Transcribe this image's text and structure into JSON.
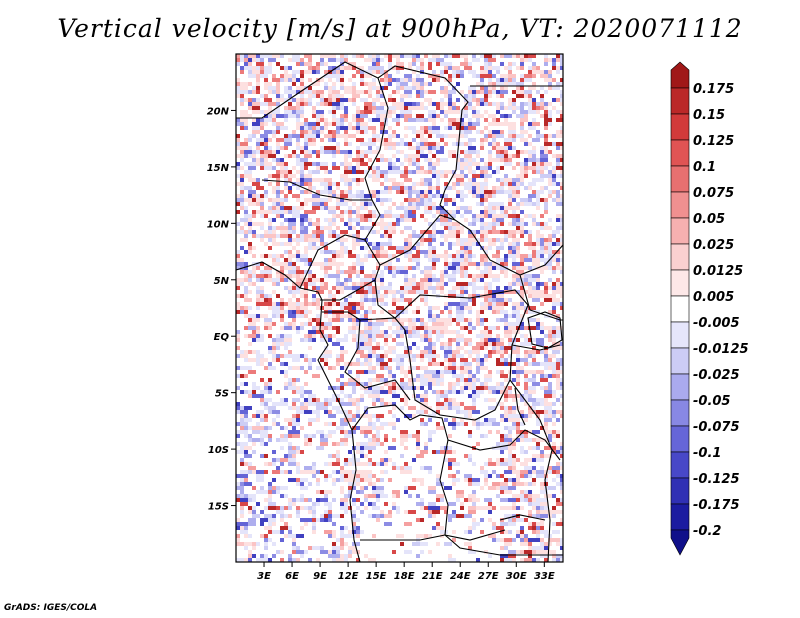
{
  "title": "Vertical velocity [m/s] at 900hPa, VT: 2020071112",
  "credit": "GrADS: IGES/COLA",
  "chart_data": {
    "type": "heatmap",
    "title": "Vertical velocity [m/s] at 900hPa, VT: 2020071112",
    "variable": "Vertical velocity",
    "units": "m/s",
    "level": "900hPa",
    "valid_time": "2020071112",
    "xlim": [
      0,
      35
    ],
    "ylim": [
      -20,
      25
    ],
    "x_ticks": [
      {
        "value": 3,
        "label": "3E"
      },
      {
        "value": 6,
        "label": "6E"
      },
      {
        "value": 9,
        "label": "9E"
      },
      {
        "value": 12,
        "label": "12E"
      },
      {
        "value": 15,
        "label": "15E"
      },
      {
        "value": 18,
        "label": "18E"
      },
      {
        "value": 21,
        "label": "21E"
      },
      {
        "value": 24,
        "label": "24E"
      },
      {
        "value": 27,
        "label": "27E"
      },
      {
        "value": 30,
        "label": "30E"
      },
      {
        "value": 33,
        "label": "33E"
      }
    ],
    "y_ticks": [
      {
        "value": 20,
        "label": "20N"
      },
      {
        "value": 15,
        "label": "15N"
      },
      {
        "value": 10,
        "label": "10N"
      },
      {
        "value": 5,
        "label": "5N"
      },
      {
        "value": 0,
        "label": "EQ"
      },
      {
        "value": -5,
        "label": "5S"
      },
      {
        "value": -10,
        "label": "10S"
      },
      {
        "value": -15,
        "label": "15S"
      }
    ],
    "colorbar": {
      "labels": [
        "0.175",
        "0.15",
        "0.125",
        "0.1",
        "0.075",
        "0.05",
        "0.025",
        "0.0125",
        "0.005",
        "-0.005",
        "-0.0125",
        "-0.025",
        "-0.05",
        "-0.075",
        "-0.1",
        "-0.125",
        "-0.175",
        "-0.2"
      ],
      "colors": [
        "#a01818",
        "#bb2828",
        "#d23a3a",
        "#e05454",
        "#e87070",
        "#f09090",
        "#f6b0b0",
        "#fad0d0",
        "#fde8e8",
        "#ffffff",
        "#e6e6fb",
        "#ccccf5",
        "#aaaaee",
        "#8888e4",
        "#6666d8",
        "#4848c8",
        "#3030b4",
        "#1c1ca0",
        "#10108a"
      ]
    }
  }
}
